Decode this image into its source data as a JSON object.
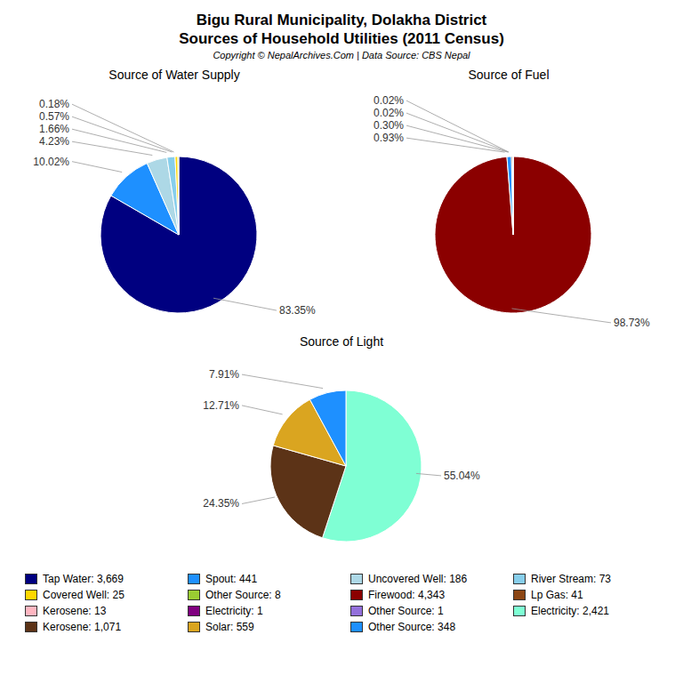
{
  "title": "Bigu Rural Municipality, Dolakha District",
  "subtitle": "Sources of Household Utilities (2011 Census)",
  "annotations": [
    "Copyright © NepalArchives.Com | Data Source: CBS Nepal"
  ],
  "legend": "bottom",
  "legend_entries": [
    {
      "name": "Tap Water: 3,669",
      "color": "#000080"
    },
    {
      "name": "Spout: 441",
      "color": "#1E90FF"
    },
    {
      "name": "Uncovered Well: 186",
      "color": "#ADD8E6"
    },
    {
      "name": "River Stream: 73",
      "color": "#87CEEB"
    },
    {
      "name": "Covered Well: 25",
      "color": "#FFD700"
    },
    {
      "name": "Other Source: 8",
      "color": "#9ACD32"
    },
    {
      "name": "Firewood: 4,343",
      "color": "#8B0000"
    },
    {
      "name": "Lp Gas: 41",
      "color": "#8B4513"
    },
    {
      "name": "Kerosene: 13",
      "color": "#FFB6C1"
    },
    {
      "name": "Electricity: 1",
      "color": "#800080"
    },
    {
      "name": "Other Source: 1",
      "color": "#9370DB"
    },
    {
      "name": "Electricity: 2,421",
      "color": "#7FFFD4"
    },
    {
      "name": "Kerosene: 1,071",
      "color": "#5C3317"
    },
    {
      "name": "Solar: 559",
      "color": "#DAA520"
    },
    {
      "name": "Other Source: 348",
      "color": "#1E90FF"
    }
  ],
  "chart_data": [
    {
      "type": "pie",
      "title": "Source of Water Supply",
      "values": [
        83.35,
        10.02,
        4.23,
        1.66,
        0.57,
        0.18
      ],
      "value_labels": [
        "83.35%",
        "10.02%",
        "4.23%",
        "1.66%",
        "0.57%",
        "0.18%"
      ],
      "colors": [
        "#000080",
        "#1E90FF",
        "#ADD8E6",
        "#87CEEB",
        "#FFD700",
        "#9ACD32"
      ],
      "data_labels": true
    },
    {
      "type": "pie",
      "title": "Source of Fuel",
      "values": [
        98.73,
        0.93,
        0.3,
        0.02,
        0.02
      ],
      "value_labels": [
        "98.73%",
        "0.93%",
        "0.30%",
        "0.02%",
        "0.02%"
      ],
      "colors": [
        "#8B0000",
        "#1E90FF",
        "#8B4513",
        "#9370DB",
        "#A9A9A9"
      ],
      "data_labels": true
    },
    {
      "type": "pie",
      "title": "Source of Light",
      "values": [
        55.04,
        24.35,
        12.71,
        7.91
      ],
      "value_labels": [
        "55.04%",
        "24.35%",
        "12.71%",
        "7.91%"
      ],
      "colors": [
        "#7FFFD4",
        "#5C3317",
        "#DAA520",
        "#1E90FF"
      ],
      "data_labels": true
    }
  ]
}
